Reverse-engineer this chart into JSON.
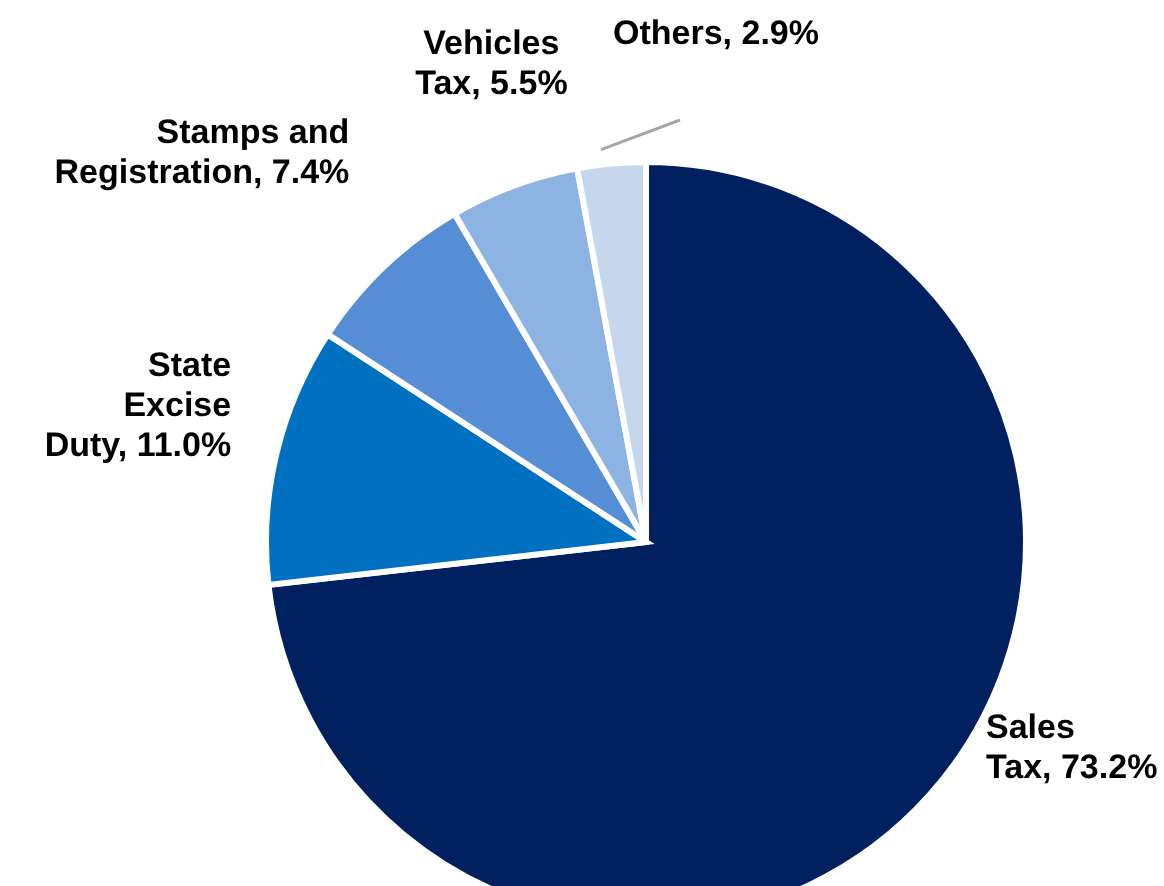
{
  "chart_data": {
    "type": "pie",
    "categories": [
      "Sales Tax",
      "State Excise Duty",
      "Stamps and Registration",
      "Vehicles Tax",
      "Others"
    ],
    "values": [
      73.2,
      11.0,
      7.4,
      5.5,
      2.9
    ],
    "value_labels": [
      "73.2%",
      "11.0%",
      "7.4%",
      "5.5%",
      "2.9%"
    ],
    "colors": [
      "#002060",
      "#0070c0",
      "#558ed5",
      "#8db3e2",
      "#c6d6ec"
    ],
    "legend": false
  }
}
